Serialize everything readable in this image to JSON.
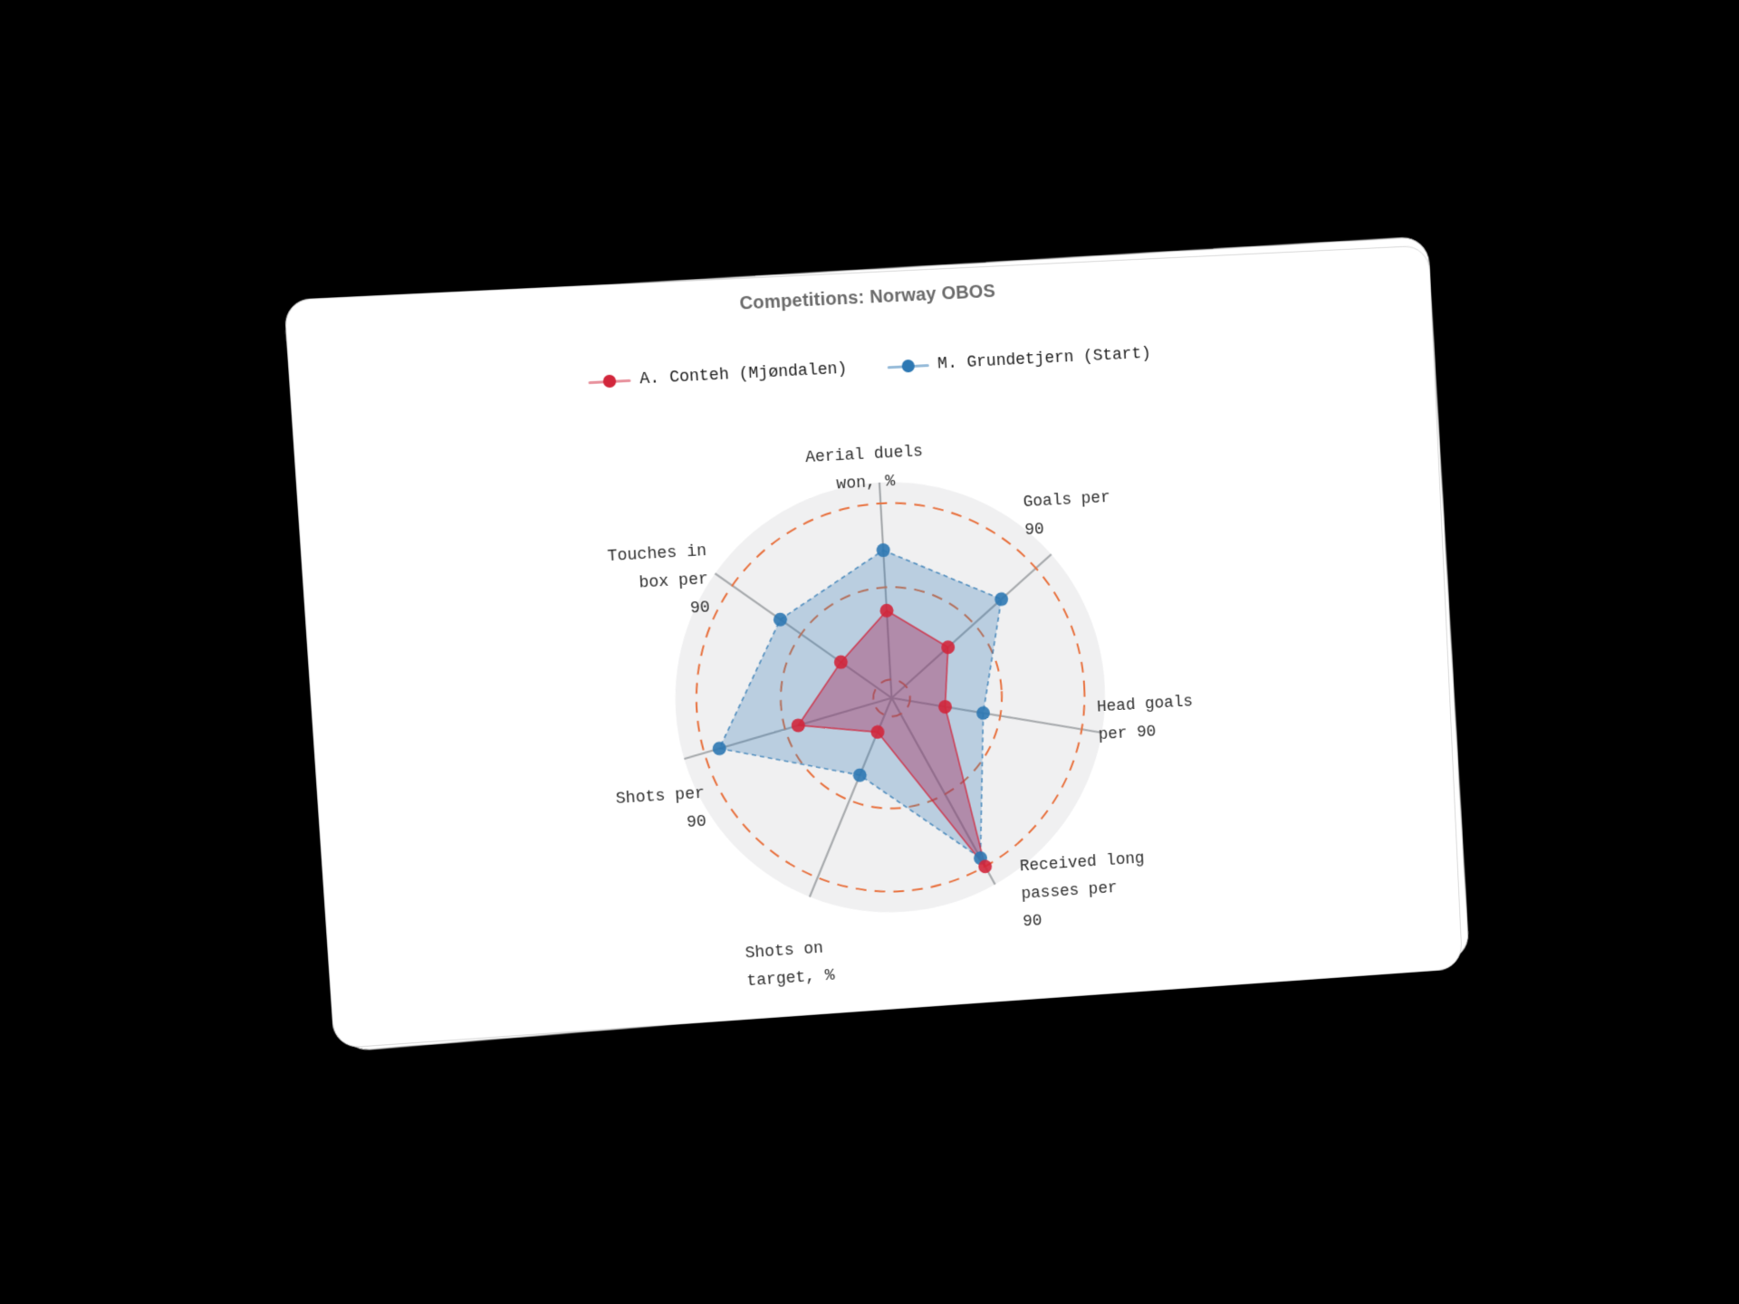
{
  "title": "Competitions: Norway OBOS",
  "legend": {
    "items": [
      {
        "label": "A. Conteh (Mjøndalen)",
        "color": "#d2263b"
      },
      {
        "label": "M. Grundetjern (Start)",
        "color": "#2d78b3"
      }
    ]
  },
  "axis_labels": [
    {
      "lines": [
        "Aerial duels",
        "won, %"
      ]
    },
    {
      "lines": [
        "Goals per",
        "90"
      ]
    },
    {
      "lines": [
        "Head goals",
        "per 90"
      ]
    },
    {
      "lines": [
        "Received long",
        "passes per",
        "90"
      ]
    },
    {
      "lines": [
        "Shots on",
        "target, %"
      ]
    },
    {
      "lines": [
        "Shots per",
        "90"
      ]
    },
    {
      "lines": [
        "Touches in",
        "box per",
        "90"
      ]
    }
  ],
  "chart_data": {
    "type": "radar",
    "title": "Competitions: Norway OBOS",
    "categories": [
      "Aerial duels won, %",
      "Goals per 90",
      "Head goals per 90",
      "Received long passes per 90",
      "Shots on target, %",
      "Shots per 90",
      "Touches in box per 90"
    ],
    "range": [
      0,
      100
    ],
    "rings_pct": [
      100,
      57,
      9.5
    ],
    "grid_style": "dashed-circles-orange",
    "legend_position": "top-center",
    "series": [
      {
        "name": "A. Conteh (Mjøndalen)",
        "color": "#d2263b",
        "fill": "rgba(166,40,90,0.40)",
        "line_style": "solid",
        "values": [
          45,
          39,
          28,
          100,
          19,
          50,
          32
        ]
      },
      {
        "name": "M. Grundetjern (Start)",
        "color": "#2d78b3",
        "fill": "rgba(45,120,179,0.28)",
        "line_style": "dashed",
        "values": [
          76,
          76,
          48,
          95,
          43,
          92,
          70
        ]
      }
    ]
  },
  "colors": {
    "page_background": "#000000",
    "card_background": "#ffffff",
    "grid_ring": "#e8703d",
    "axis_spoke": "#a7aaad",
    "radar_disk": "#f0f0f1",
    "title_text": "#6a6a6a",
    "label_text": "#2f2f2f"
  }
}
